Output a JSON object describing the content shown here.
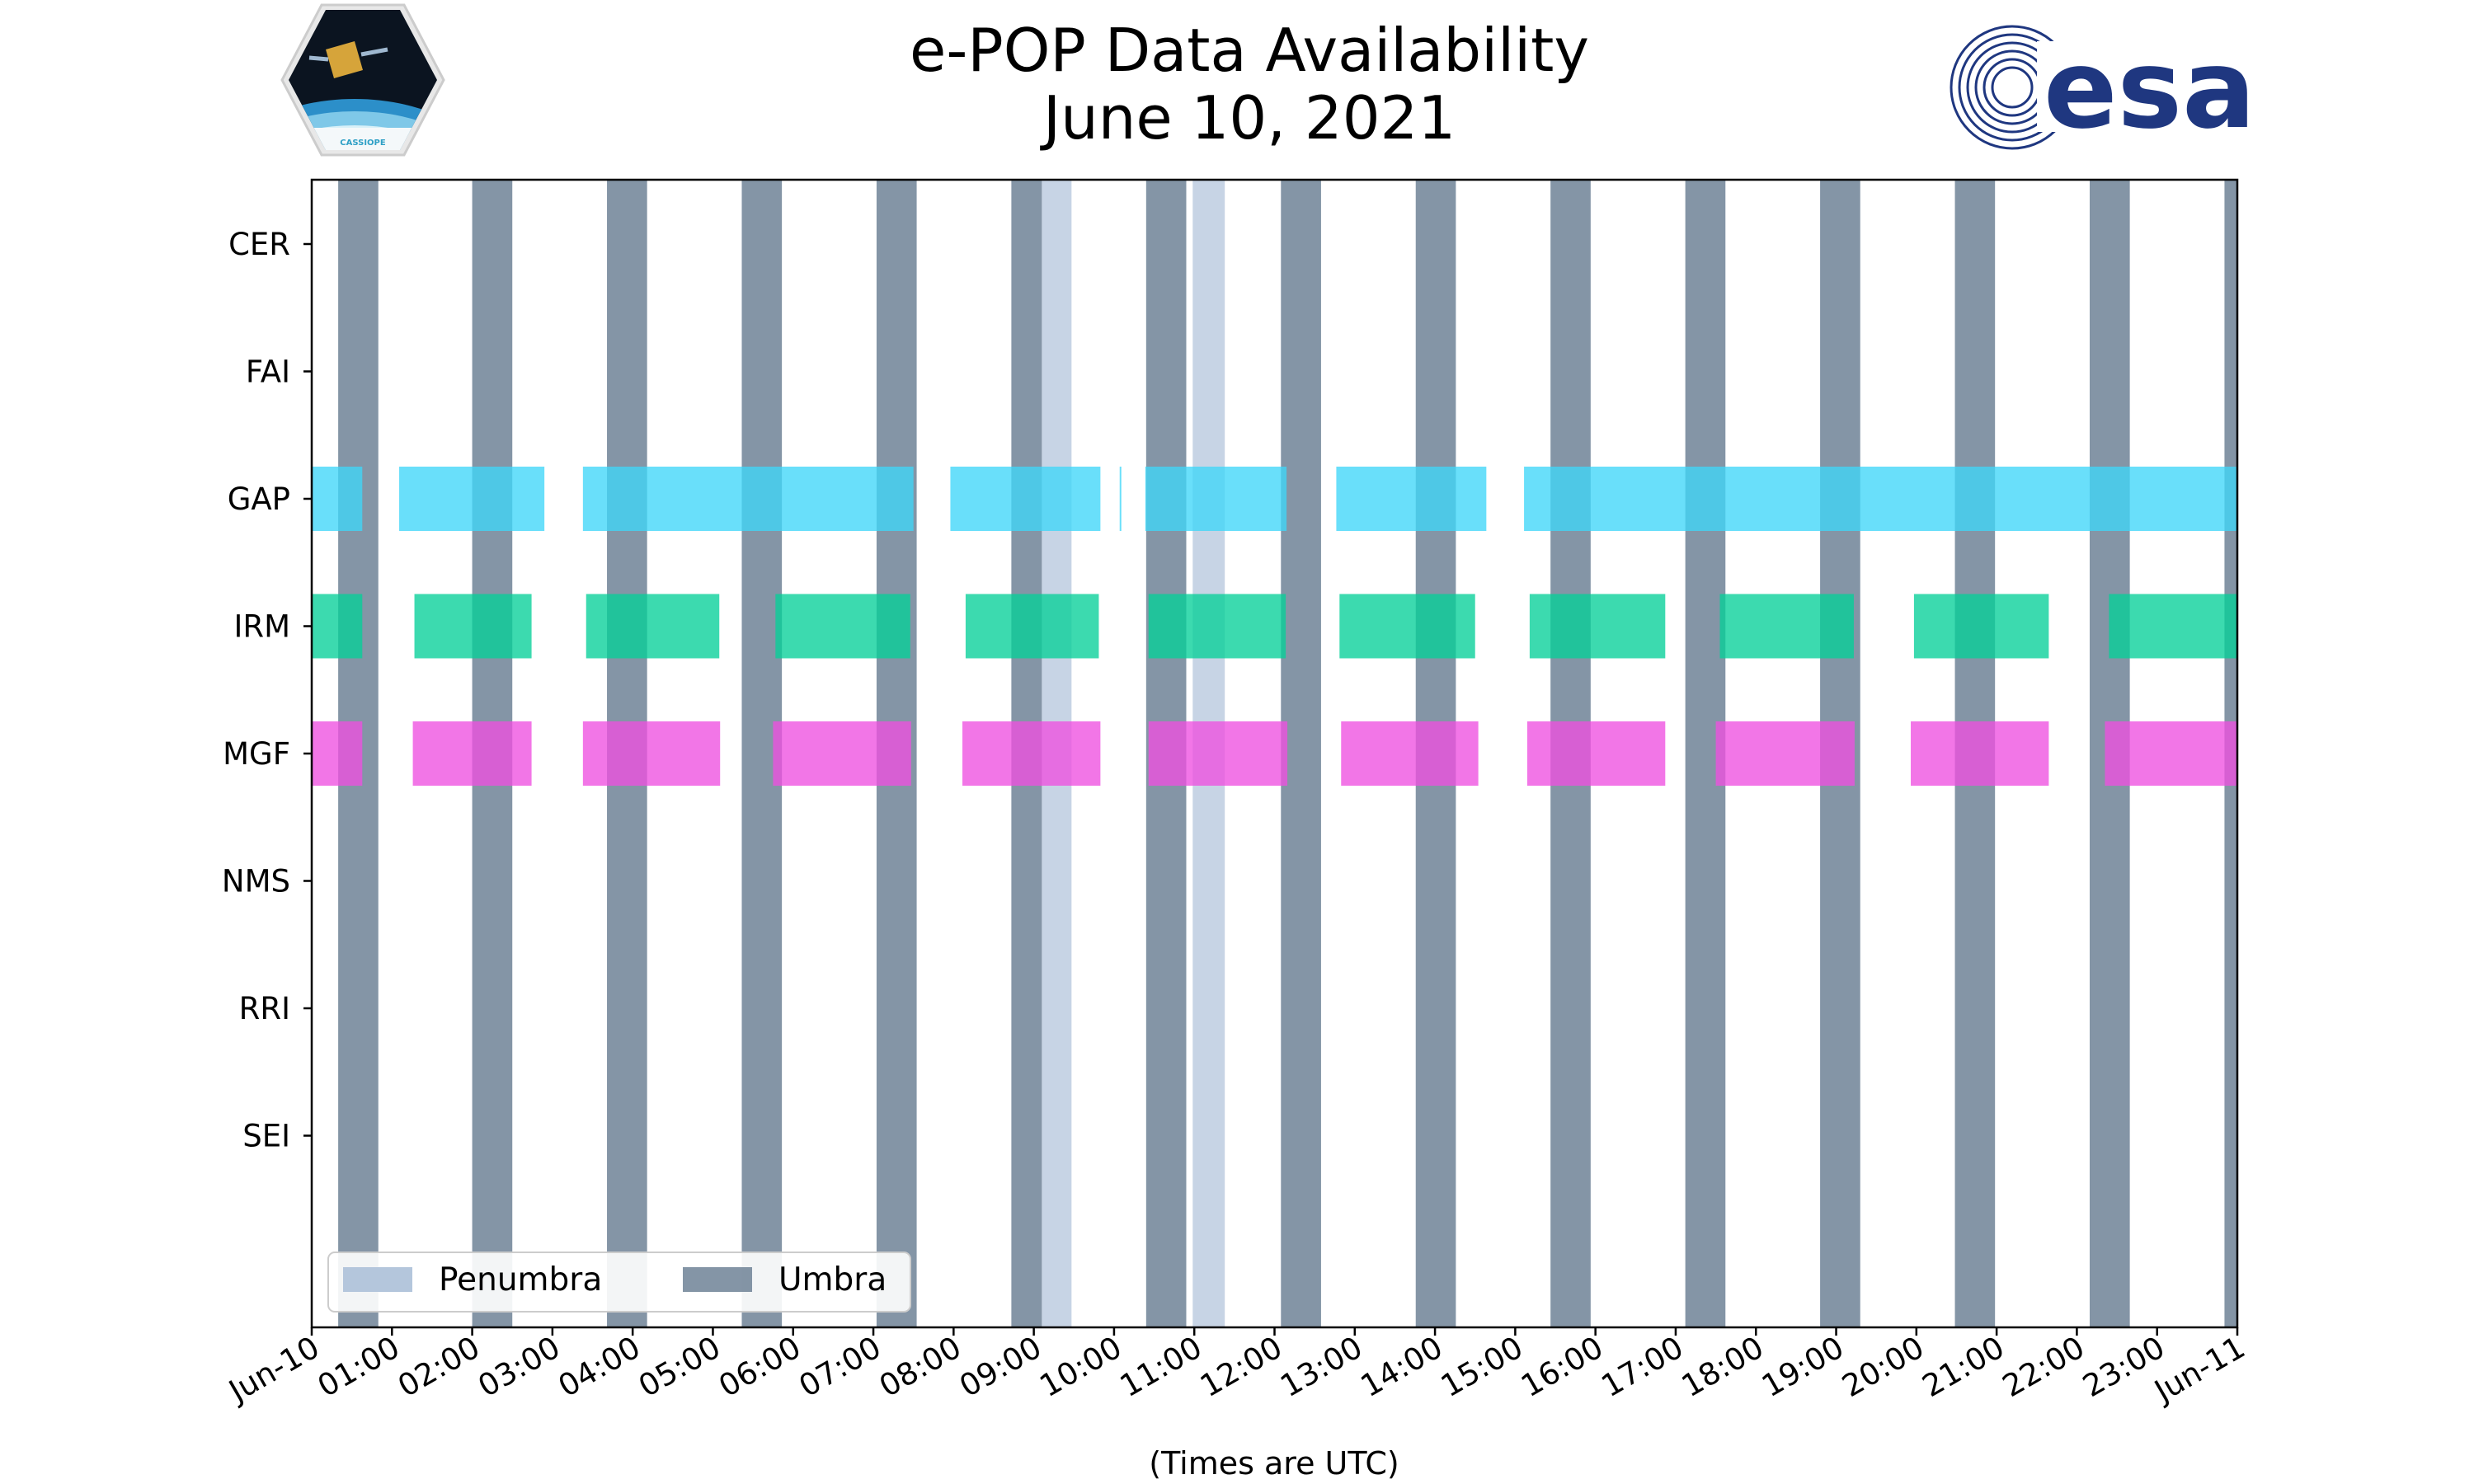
{
  "chart_data": {
    "type": "timeline",
    "title": "e-POP Data Availability",
    "subtitle": "June 10, 2021",
    "xlabel": "(Times are UTC)",
    "xlim_hours": [
      0,
      24
    ],
    "x_ticks": [
      "Jun-10",
      "01:00",
      "02:00",
      "03:00",
      "04:00",
      "05:00",
      "06:00",
      "07:00",
      "08:00",
      "09:00",
      "10:00",
      "11:00",
      "12:00",
      "13:00",
      "14:00",
      "15:00",
      "16:00",
      "17:00",
      "18:00",
      "19:00",
      "20:00",
      "21:00",
      "22:00",
      "23:00",
      "Jun-11"
    ],
    "instruments": [
      "CER",
      "FAI",
      "GAP",
      "IRM",
      "MGF",
      "NMS",
      "RRI",
      "SEI"
    ],
    "colors": {
      "umbra": "#6e8296",
      "penumbra": "#b4c6dc",
      "GAP": "#3fd6f8",
      "IRM": "#05cf98",
      "MGF": "#ee50e0"
    },
    "umbra_intervals": [
      [
        0.33,
        0.83
      ],
      [
        2.0,
        2.5
      ],
      [
        3.68,
        4.18
      ],
      [
        5.36,
        5.86
      ],
      [
        7.04,
        7.54
      ],
      [
        8.72,
        9.1
      ],
      [
        10.4,
        10.9
      ],
      [
        12.08,
        12.58
      ],
      [
        13.76,
        14.26
      ],
      [
        15.44,
        15.94
      ],
      [
        17.12,
        17.62
      ],
      [
        18.8,
        19.3
      ],
      [
        20.48,
        20.98
      ],
      [
        22.16,
        22.66
      ],
      [
        23.84,
        24.0
      ]
    ],
    "penumbra_intervals": [
      [
        9.1,
        9.47
      ],
      [
        10.98,
        11.38
      ]
    ],
    "availability": {
      "CER": [],
      "FAI": [],
      "GAP": [
        [
          0.0,
          0.63
        ],
        [
          1.09,
          2.9
        ],
        [
          3.38,
          7.5
        ],
        [
          7.96,
          9.83
        ],
        [
          10.07,
          10.09
        ],
        [
          10.39,
          12.15
        ],
        [
          12.77,
          14.64
        ],
        [
          15.11,
          24.0
        ]
      ],
      "IRM": [
        [
          0.0,
          0.63
        ],
        [
          1.28,
          2.74
        ],
        [
          3.42,
          5.08
        ],
        [
          5.78,
          7.46
        ],
        [
          8.15,
          9.81
        ],
        [
          10.43,
          12.14
        ],
        [
          12.81,
          14.5
        ],
        [
          15.18,
          16.87
        ],
        [
          17.55,
          19.22
        ],
        [
          19.97,
          21.65
        ],
        [
          22.4,
          24.0
        ]
      ],
      "MGF": [
        [
          0.0,
          0.63
        ],
        [
          1.26,
          2.74
        ],
        [
          3.38,
          5.09
        ],
        [
          5.75,
          7.47
        ],
        [
          8.11,
          9.83
        ],
        [
          10.43,
          12.16
        ],
        [
          12.83,
          14.54
        ],
        [
          15.15,
          16.87
        ],
        [
          17.5,
          19.23
        ],
        [
          19.93,
          21.65
        ],
        [
          22.35,
          24.0
        ]
      ],
      "NMS": [],
      "RRI": [],
      "SEI": []
    },
    "legend": {
      "location": "lower-left",
      "entries": [
        "Penumbra",
        "Umbra"
      ]
    }
  },
  "logos": {
    "left_patch_text": "CASSIOPE",
    "right_logo_text": "esa"
  }
}
